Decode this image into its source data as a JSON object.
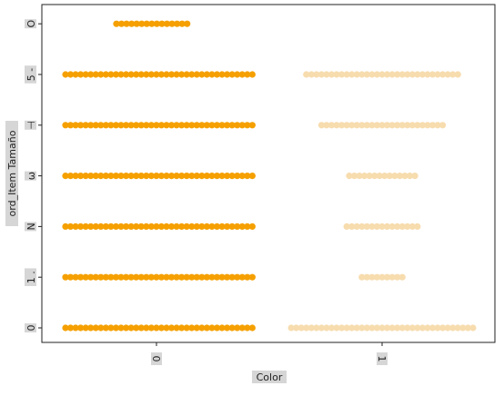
{
  "chart_data": {
    "type": "scatter",
    "subtype": "swarm",
    "xlabel": "Color",
    "ylabel": "ord_Item Tamaño",
    "categories": [
      "0",
      "1"
    ],
    "y_ticks": [
      "0",
      "1",
      "2",
      "3",
      "4",
      "5",
      "6"
    ],
    "y_tick_labels_shown": [
      "0",
      "1 .",
      "N",
      "ω",
      "⊣",
      "5 -",
      "O"
    ],
    "x_tick_labels_shown": [
      "0",
      "1"
    ],
    "grid": false,
    "legend": "none",
    "colors": {
      "category_0": "#f5a000",
      "category_1": "#f7dcae",
      "axis": "#222222",
      "label_background": "#d6d6d6"
    },
    "series": [
      {
        "category": "0",
        "counts_by_level": [
          {
            "level": 0,
            "count": 38
          },
          {
            "level": 1,
            "count": 38
          },
          {
            "level": 2,
            "count": 38
          },
          {
            "level": 3,
            "count": 38
          },
          {
            "level": 4,
            "count": 38
          },
          {
            "level": 5,
            "count": 38
          },
          {
            "level": 6,
            "count": 15
          }
        ]
      },
      {
        "category": "1",
        "counts_by_level": [
          {
            "level": 0,
            "count": 37
          },
          {
            "level": 1,
            "count": 9
          },
          {
            "level": 2,
            "count": 15
          },
          {
            "level": 3,
            "count": 14
          },
          {
            "level": 4,
            "count": 25
          },
          {
            "level": 5,
            "count": 31
          },
          {
            "level": 6,
            "count": 0
          }
        ]
      }
    ]
  }
}
